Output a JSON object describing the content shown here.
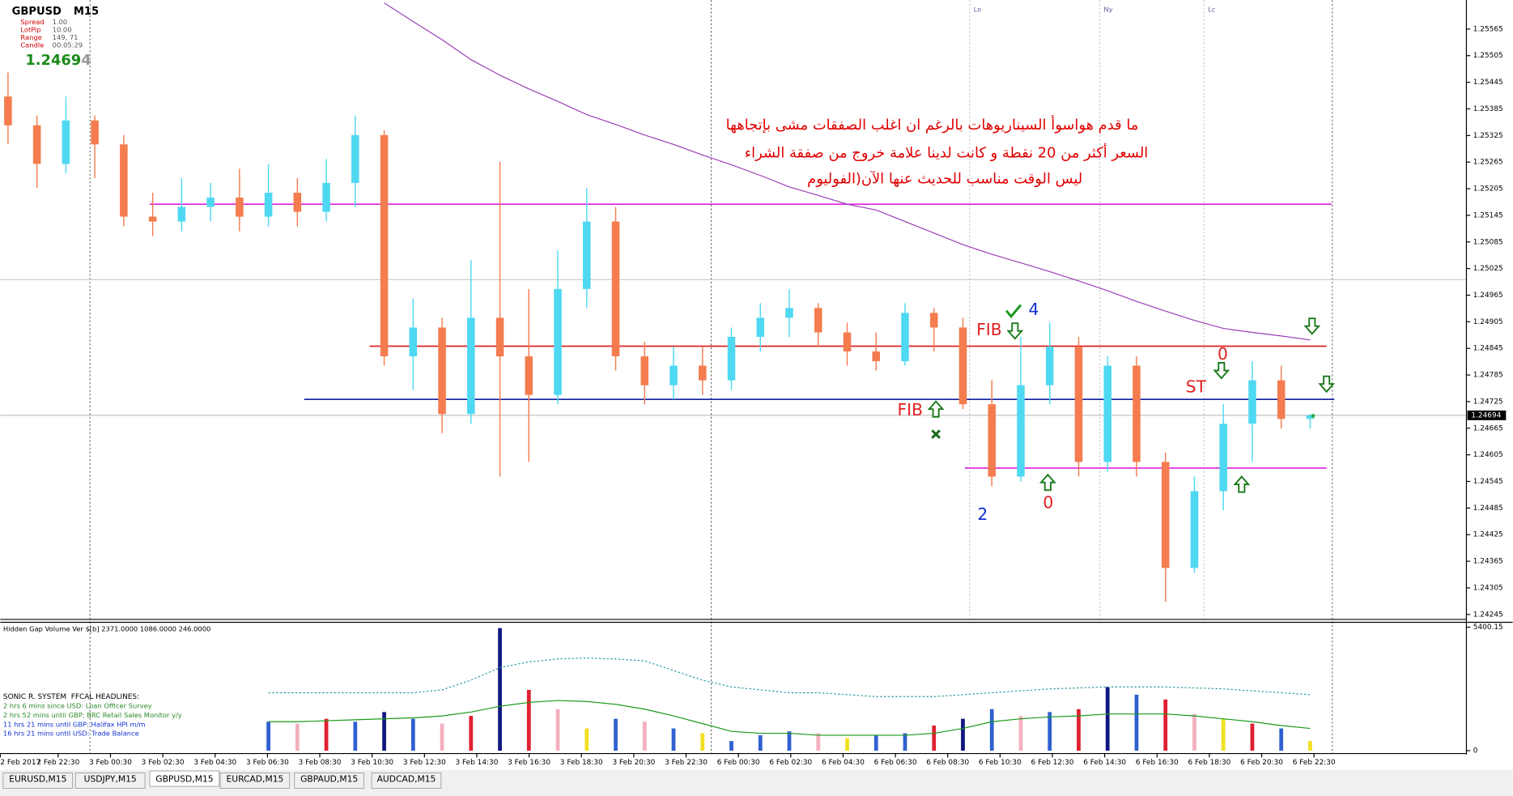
{
  "window": {
    "symbol": "GBPUSD",
    "timeframe": "M15",
    "info": [
      [
        "Spread",
        "1.00"
      ],
      [
        "LotPip",
        "10.00"
      ],
      [
        "Range",
        "149, 71"
      ],
      [
        "Candle",
        "00:05:29"
      ]
    ],
    "price_main": "1.2469",
    "price_last": "4"
  },
  "chart_data": {
    "type": "candlestick",
    "time_labels": [
      "2 Feb 2017",
      "2 Feb 22:30",
      "3 Feb 00:30",
      "3 Feb 02:30",
      "3 Feb 04:30",
      "3 Feb 06:30",
      "3 Feb 08:30",
      "3 Feb 10:30",
      "3 Feb 12:30",
      "3 Feb 14:30",
      "3 Feb 16:30",
      "3 Feb 18:30",
      "3 Feb 20:30",
      "3 Feb 22:30",
      "6 Feb 00:30",
      "6 Feb 02:30",
      "6 Feb 04:30",
      "6 Feb 06:30",
      "6 Feb 08:30",
      "6 Feb 10:30",
      "6 Feb 12:30",
      "6 Feb 14:30",
      "6 Feb 16:30",
      "6 Feb 18:30",
      "6 Feb 20:30",
      "6 Feb 22:30"
    ],
    "ohlc": [
      [
        1.25413,
        1.25467,
        1.25305,
        1.25348
      ],
      [
        1.25348,
        1.2537,
        1.25207,
        1.25261
      ],
      [
        1.25261,
        1.25413,
        1.2524,
        1.25359
      ],
      [
        1.25359,
        1.2537,
        1.25229,
        1.25305
      ],
      [
        1.25305,
        1.25326,
        1.2512,
        1.25142
      ],
      [
        1.25142,
        1.25196,
        1.25098,
        1.25131
      ],
      [
        1.25131,
        1.25229,
        1.25109,
        1.25164
      ],
      [
        1.25164,
        1.25218,
        1.25131,
        1.25185
      ],
      [
        1.25185,
        1.2525,
        1.25109,
        1.25142
      ],
      [
        1.25142,
        1.25261,
        1.2512,
        1.25196
      ],
      [
        1.25196,
        1.25229,
        1.2512,
        1.25153
      ],
      [
        1.25153,
        1.25272,
        1.25131,
        1.25218
      ],
      [
        1.25218,
        1.2537,
        1.25164,
        1.25326
      ],
      [
        1.25326,
        1.25337,
        1.24806,
        1.24827
      ],
      [
        1.24827,
        1.24957,
        1.24751,
        1.24892
      ],
      [
        1.24892,
        1.24914,
        1.24654,
        1.24697
      ],
      [
        1.24697,
        1.25044,
        1.24675,
        1.24914
      ],
      [
        1.24914,
        1.25266,
        1.24556,
        1.24827
      ],
      [
        1.24827,
        1.24979,
        1.24589,
        1.2474
      ],
      [
        1.2474,
        1.25066,
        1.24719,
        1.24979
      ],
      [
        1.24979,
        1.25207,
        1.24936,
        1.25131
      ],
      [
        1.25131,
        1.25164,
        1.24795,
        1.24827
      ],
      [
        1.24827,
        1.2486,
        1.24719,
        1.24762
      ],
      [
        1.24762,
        1.24849,
        1.2473,
        1.24806
      ],
      [
        1.24806,
        1.24849,
        1.2474,
        1.24773
      ],
      [
        1.24773,
        1.24892,
        1.24751,
        1.24871
      ],
      [
        1.24871,
        1.24947,
        1.24838,
        1.24914
      ],
      [
        1.24914,
        1.24979,
        1.24871,
        1.24936
      ],
      [
        1.24936,
        1.24947,
        1.24849,
        1.24881
      ],
      [
        1.24881,
        1.24903,
        1.24806,
        1.24838
      ],
      [
        1.24838,
        1.24881,
        1.24795,
        1.24816
      ],
      [
        1.24816,
        1.24947,
        1.24806,
        1.24925
      ],
      [
        1.24925,
        1.24936,
        1.24838,
        1.24892
      ],
      [
        1.24892,
        1.24914,
        1.24708,
        1.24719
      ],
      [
        1.24719,
        1.24773,
        1.24534,
        1.24556
      ],
      [
        1.24556,
        1.24871,
        1.24545,
        1.24762
      ],
      [
        1.24762,
        1.24903,
        1.24719,
        1.24849
      ],
      [
        1.24849,
        1.24871,
        1.24556,
        1.24589
      ],
      [
        1.24589,
        1.24827,
        1.24567,
        1.24806
      ],
      [
        1.24806,
        1.24827,
        1.24556,
        1.24589
      ],
      [
        1.24589,
        1.2461,
        1.24274,
        1.2435
      ],
      [
        1.2435,
        1.24556,
        1.24339,
        1.24523
      ],
      [
        1.24523,
        1.24719,
        1.2448,
        1.24675
      ],
      [
        1.24675,
        1.24816,
        1.24589,
        1.24773
      ],
      [
        1.24773,
        1.24806,
        1.24664,
        1.24686
      ],
      [
        1.24686,
        1.24697,
        1.24664,
        1.24694
      ]
    ],
    "up_color": "#4fd8f2",
    "down_color": "#f47c4e",
    "ylim": [
      1.24236,
      1.25624
    ],
    "yticks": [
      1.25565,
      1.25505,
      1.25445,
      1.25385,
      1.25325,
      1.25265,
      1.25205,
      1.25145,
      1.25085,
      1.25025,
      1.24965,
      1.24905,
      1.24845,
      1.24785,
      1.24725,
      1.24665,
      1.24605,
      1.24545,
      1.24485,
      1.24425,
      1.24365,
      1.24305,
      1.24245
    ],
    "current_price": 1.24694,
    "moving_average": {
      "color": "#9b3fb5",
      "values": [
        null,
        null,
        null,
        null,
        null,
        null,
        null,
        null,
        null,
        null,
        null,
        null,
        null,
        1.25624,
        1.25582,
        1.25541,
        1.25496,
        1.25461,
        1.2543,
        1.25402,
        1.25372,
        1.2535,
        1.25326,
        1.25305,
        1.25281,
        1.25259,
        1.25235,
        1.25209,
        1.2519,
        1.2517,
        1.25157,
        1.25131,
        1.25105,
        1.25079,
        1.25057,
        1.25038,
        1.25018,
        1.24997,
        1.24975,
        1.24951,
        1.24929,
        1.24908,
        1.2489,
        1.24881,
        1.24873,
        1.24864
      ]
    },
    "levels": [
      {
        "value": 1.2517,
        "color": "#e020e0"
      },
      {
        "value": 1.2485,
        "color": "#e02020"
      },
      {
        "value": 1.2473,
        "color": "#1020a0"
      },
      {
        "value": 1.24575,
        "color": "#e020e0"
      },
      {
        "value": 1.25,
        "color": "#c8c8c8"
      }
    ],
    "sessions": [
      "Lo",
      "Ny",
      "Lc"
    ],
    "comment": [
      "ما قدم هواسوأ السيناريوهات بالرغم ان اغلب الصفقات مشى بإتجاهها",
      "السعر أكثر من 20 نقطة و كانت لدينا علامة خروج من صفقة الشراء",
      "ليس الوقت مناسب للحديث عنها الآن(الفوليوم"
    ],
    "annotations": [
      {
        "text": "FIB",
        "color": "#e02020"
      },
      {
        "text": "4",
        "color": "#1030d0"
      },
      {
        "text": "FIB",
        "color": "#e02020"
      },
      {
        "text": "2",
        "color": "#1030d0"
      },
      {
        "text": "0",
        "color": "#e02020"
      },
      {
        "text": "0",
        "color": "#e02020"
      },
      {
        "text": "ST",
        "color": "#e02020"
      }
    ],
    "volume": {
      "title": "Hidden Gap Volume Ver $[b] 2371.0000 1086.0000 246.0000",
      "ylim": [
        0,
        5400.15
      ],
      "yticks": [
        5400.15,
        0
      ],
      "values": [
        null,
        null,
        null,
        null,
        null,
        null,
        null,
        null,
        null,
        1266,
        1182,
        1393,
        1266,
        1688,
        1393,
        1182,
        1519,
        5359,
        2659,
        1815,
        971,
        1393,
        1266,
        971,
        760,
        422,
        675,
        844,
        760,
        549,
        675,
        760,
        1097,
        1393,
        1815,
        1519,
        1688,
        1815,
        2785,
        2448,
        2237,
        1604,
        1393,
        1182,
        971,
        422
      ],
      "colors": [
        null,
        null,
        null,
        null,
        null,
        null,
        null,
        null,
        null,
        "#3060d0",
        "#f4b0c0",
        "#e02030",
        "#3060d0",
        "#101880",
        "#3060d0",
        "#f4b0c0",
        "#e02030",
        "#101880",
        "#e02030",
        "#f4b0c0",
        "#f0e020",
        "#3060d0",
        "#f4b0c0",
        "#3060d0",
        "#f0e020",
        "#3060d0",
        "#3060d0",
        "#3060d0",
        "#f4b0c0",
        "#f0e020",
        "#3060d0",
        "#3060d0",
        "#e02030",
        "#101880",
        "#3060d0",
        "#f4b0c0",
        "#3060d0",
        "#e02030",
        "#101880",
        "#3060d0",
        "#e02030",
        "#f4b0c0",
        "#f0e020",
        "#e02030",
        "#3060d0",
        "#f0e020"
      ],
      "average": [
        null,
        null,
        null,
        null,
        null,
        null,
        null,
        null,
        null,
        1266,
        1266,
        1308,
        1350,
        1393,
        1435,
        1519,
        1688,
        1941,
        2110,
        2194,
        2152,
        2026,
        1815,
        1519,
        1182,
        844,
        760,
        760,
        675,
        675,
        675,
        675,
        760,
        971,
        1266,
        1393,
        1477,
        1519,
        1604,
        1604,
        1604,
        1519,
        1393,
        1266,
        1097,
        971
      ],
      "average_color": "#1a9a1a",
      "band": [
        null,
        null,
        null,
        null,
        null,
        null,
        null,
        null,
        null,
        2532,
        2532,
        2532,
        2532,
        2532,
        2532,
        2659,
        3081,
        3629,
        3882,
        4009,
        4051,
        4009,
        3925,
        3503,
        3081,
        2785,
        2659,
        2532,
        2532,
        2448,
        2363,
        2363,
        2363,
        2448,
        2532,
        2616,
        2701,
        2743,
        2785,
        2785,
        2785,
        2743,
        2701,
        2616,
        2532,
        2448
      ],
      "band_color": "#2a9aa0"
    },
    "headlines": {
      "title": "SONIC R. SYSTEM  FFCAL HEADLINES:",
      "items": [
        {
          "text": "2 hrs 6 mins since USD: Loan Officer Survey",
          "color": "#2a8a2a"
        },
        {
          "text": "2 hrs 52 mins until GBP: BRC Retail Sales Monitor y/y",
          "color": "#2a8a2a"
        },
        {
          "text": "11 hrs 21 mins until GBP: Halifax HPI m/m",
          "color": "#1030d0"
        },
        {
          "text": "16 hrs 21 mins until USD: Trade Balance",
          "color": "#1030d0"
        }
      ]
    }
  },
  "tabs": [
    "EURUSD,M15",
    "USDJPY,M15",
    "GBPUSD,M15",
    "EURCAD,M15",
    "GBPAUD,M15",
    "AUDCAD,M15"
  ]
}
